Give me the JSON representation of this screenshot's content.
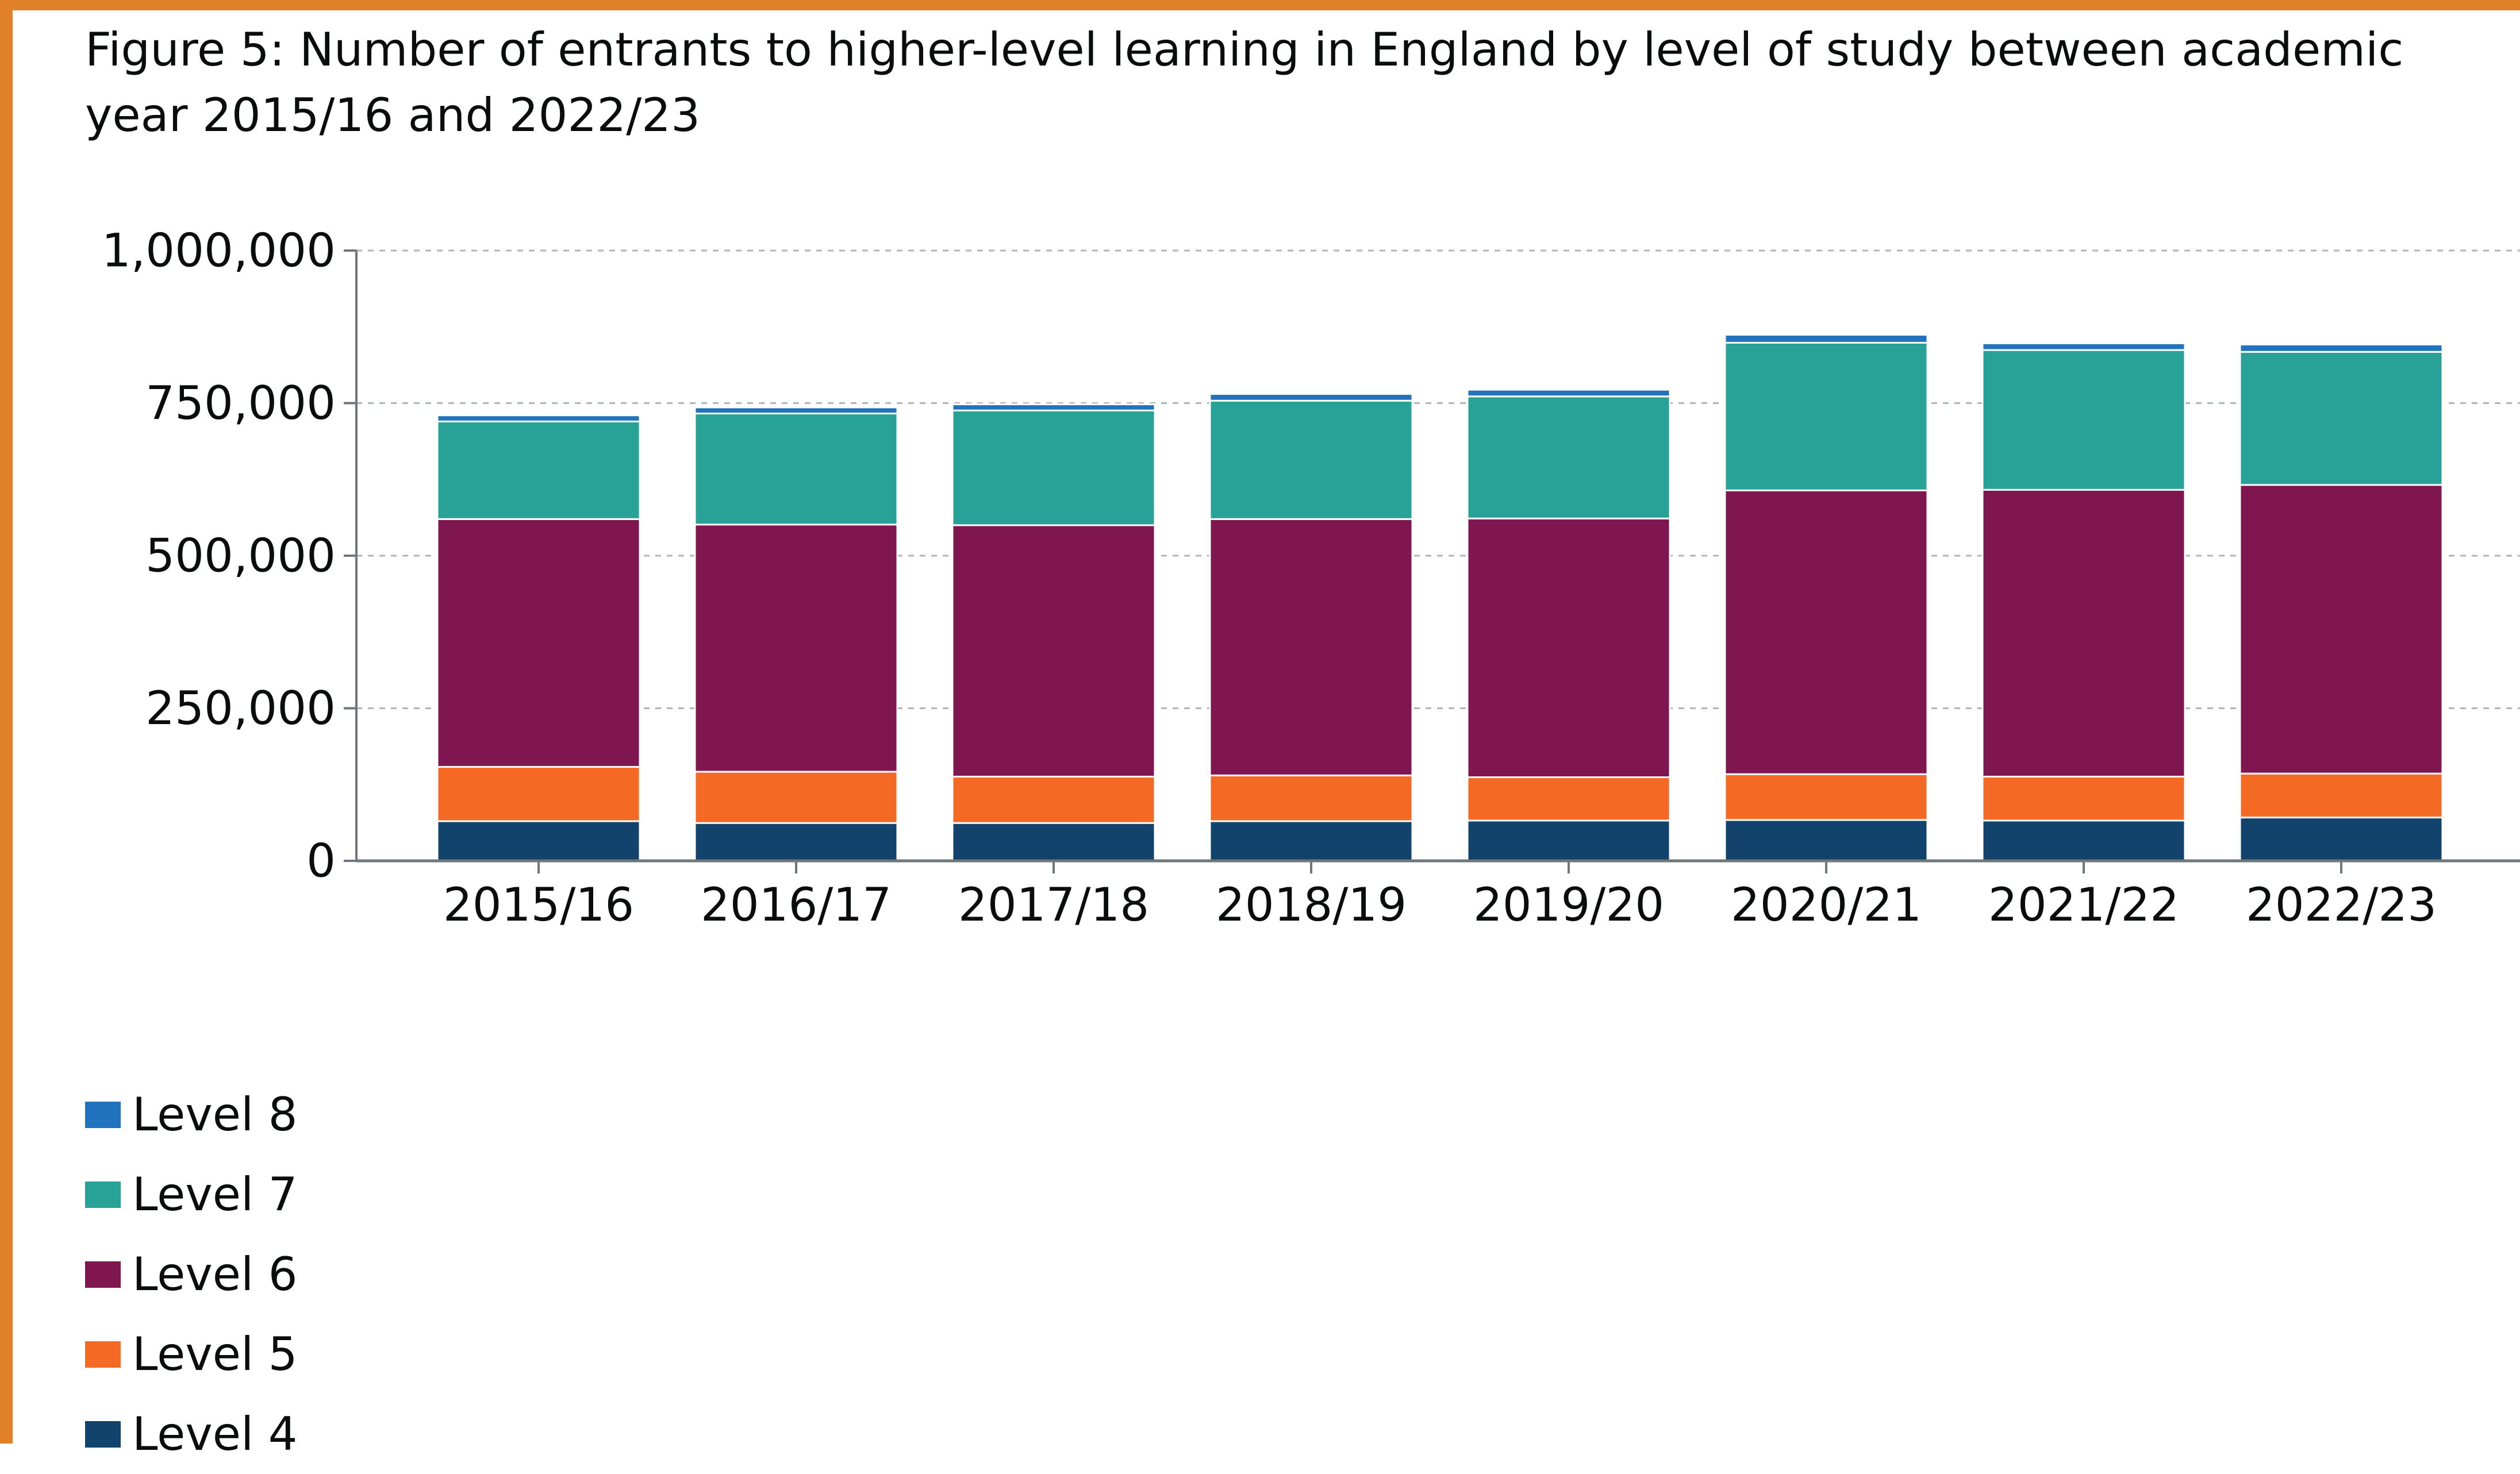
{
  "chart_data": {
    "type": "bar",
    "stacked": true,
    "title": "Figure 5: Number of entrants to higher-level learning in England by level of study between academic year 2015/16 and 2022/23",
    "xlabel": "",
    "ylabel": "",
    "ylim": [
      0,
      1000000
    ],
    "yticks": [
      0,
      250000,
      500000,
      750000,
      1000000
    ],
    "ytick_labels": [
      "0",
      "250,000",
      "500,000",
      "750,000",
      "1,000,000"
    ],
    "grid": true,
    "legend_position": "bottom-left",
    "categories": [
      "2015/16",
      "2016/17",
      "2017/18",
      "2018/19",
      "2019/20",
      "2020/21",
      "2021/22",
      "2022/23"
    ],
    "series": [
      {
        "name": "Level 4",
        "color": "#12436d",
        "values": [
          65000,
          62000,
          62000,
          65000,
          66000,
          67000,
          66000,
          71000
        ]
      },
      {
        "name": "Level 5",
        "color": "#f46a25",
        "values": [
          89000,
          84000,
          76000,
          75000,
          71000,
          75000,
          72000,
          72000
        ]
      },
      {
        "name": "Level 6",
        "color": "#801650",
        "values": [
          406000,
          405000,
          412000,
          420000,
          424000,
          465000,
          470000,
          473000
        ]
      },
      {
        "name": "Level 7",
        "color": "#28a197",
        "values": [
          160000,
          182000,
          188000,
          194000,
          200000,
          242000,
          229000,
          218000
        ]
      },
      {
        "name": "Level 8",
        "color": "#2073bc",
        "values": [
          10000,
          10000,
          10000,
          11000,
          11000,
          13000,
          11000,
          12000
        ]
      }
    ],
    "legend_order": [
      "Level 8",
      "Level 7",
      "Level 6",
      "Level 5",
      "Level 4"
    ]
  }
}
